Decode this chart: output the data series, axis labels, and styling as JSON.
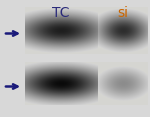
{
  "bg_color": "#d8d8d8",
  "label_tc": "TC",
  "label_si": "si",
  "label_tc_color": "#2a2a7a",
  "label_si_color": "#cc6600",
  "label_fontsize": 10,
  "arrow_color": "#1a1a7a",
  "figwidth": 1.5,
  "figheight": 1.17,
  "dpi": 100
}
